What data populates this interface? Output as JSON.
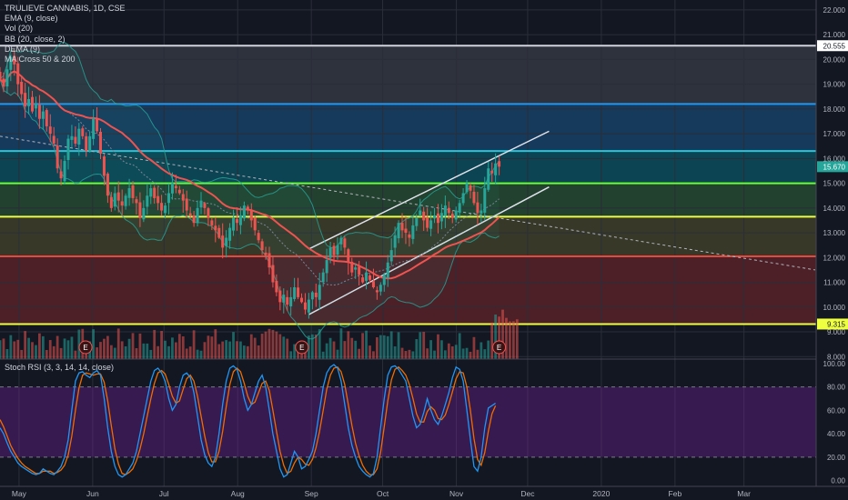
{
  "legend": {
    "title": "TRULIEVE CANNABIS, 1D, CSE",
    "indicators": [
      "EMA (9, close)",
      "Vol (20)",
      "BB (20, close, 2)",
      "DEMA (9)",
      "MA Cross 50 & 200"
    ],
    "rsi": "Stoch RSI (3, 3, 14, 14, close)"
  },
  "chart_data": {
    "type": "candlestick",
    "symbol": "TRULIEVE CANNABIS",
    "interval": "1D",
    "exchange": "CSE",
    "price_axis": {
      "range": [
        7.9,
        22.4
      ],
      "ticks": [
        "22.000",
        "21.000",
        "20.000",
        "19.000",
        "18.000",
        "17.000",
        "16.000",
        "15.000",
        "14.000",
        "13.000",
        "12.000",
        "11.000",
        "10.000",
        "9.000",
        "8.000"
      ]
    },
    "time_axis": [
      "May",
      "Jun",
      "Jul",
      "Aug",
      "Sep",
      "Oct",
      "Nov",
      "Dec",
      "2020",
      "Feb",
      "Mar"
    ],
    "price_labels": [
      {
        "value": "20.555",
        "color": "#ffffff",
        "text_color": "#131722"
      },
      {
        "value": "15.670",
        "color": "#26a69a",
        "text_color": "#ffffff"
      },
      {
        "value": "9.315",
        "color": "#eeff41",
        "text_color": "#131722"
      }
    ],
    "horizontal_levels": [
      {
        "price": 20.555,
        "color": "#d1d4dc"
      },
      {
        "price": 18.2,
        "color": "#2196f3"
      },
      {
        "price": 16.3,
        "color": "#26c6da"
      },
      {
        "price": 15.0,
        "color": "#66ff33"
      },
      {
        "price": 13.65,
        "color": "#eeff41"
      },
      {
        "price": 12.05,
        "color": "#f44336"
      },
      {
        "price": 9.315,
        "color": "#eeff41"
      }
    ],
    "zones": [
      {
        "from": 18.2,
        "to": 20.555,
        "color": "#787b86"
      },
      {
        "from": 16.3,
        "to": 18.2,
        "color": "#2196f3"
      },
      {
        "from": 15.0,
        "to": 16.3,
        "color": "#00bcd4"
      },
      {
        "from": 13.65,
        "to": 15.0,
        "color": "#4caf50"
      },
      {
        "from": 12.05,
        "to": 13.65,
        "color": "#9c8f3a"
      },
      {
        "from": 9.315,
        "to": 12.05,
        "color": "#e53935"
      }
    ],
    "closes": [
      19.2,
      18.9,
      19.6,
      20.1,
      19.8,
      19.0,
      18.6,
      18.1,
      18.4,
      17.9,
      18.2,
      17.6,
      17.9,
      17.3,
      17.0,
      16.6,
      15.6,
      15.2,
      15.9,
      16.8,
      16.9,
      16.6,
      17.2,
      16.9,
      16.3,
      16.9,
      17.6,
      17.1,
      16.2,
      15.3,
      14.5,
      14.0,
      14.6,
      14.3,
      14.1,
      14.5,
      14.8,
      14.4,
      14.2,
      13.6,
      14.0,
      14.5,
      14.8,
      14.4,
      14.2,
      13.9,
      14.1,
      14.6,
      15.0,
      14.8,
      14.6,
      14.3,
      13.9,
      13.7,
      13.4,
      14.0,
      14.3,
      14.0,
      13.6,
      13.3,
      13.1,
      12.8,
      12.4,
      12.8,
      13.2,
      13.6,
      13.4,
      13.7,
      14.1,
      13.9,
      13.5,
      13.1,
      12.7,
      12.3,
      12.1,
      11.6,
      11.0,
      10.6,
      10.2,
      10.5,
      10.1,
      10.4,
      10.8,
      10.4,
      10.2,
      9.9,
      10.3,
      10.6,
      10.4,
      10.9,
      11.4,
      11.9,
      12.4,
      12.1,
      12.5,
      12.8,
      12.4,
      11.8,
      11.4,
      11.6,
      11.3,
      11.0,
      11.4,
      11.1,
      10.8,
      10.6,
      10.9,
      11.3,
      11.8,
      12.3,
      12.9,
      13.4,
      13.1,
      13.0,
      12.8,
      13.3,
      13.6,
      13.9,
      13.5,
      13.2,
      13.5,
      13.7,
      13.4,
      13.8,
      14.1,
      13.8,
      13.6,
      13.9,
      14.2,
      14.6,
      15.0,
      14.7,
      14.2,
      13.8,
      13.9,
      14.8,
      15.6,
      15.4,
      15.8,
      15.67
    ],
    "dates": {
      "first": "2019-04-23",
      "last": "2019-11-19"
    },
    "series": [
      {
        "name": "MA Cross 50 & 200",
        "color": "#ef5350"
      },
      {
        "name": "BB (20, close, 2)",
        "color": "#26a69a"
      },
      {
        "name": "EMA (9, close)",
        "color": "#7c8596"
      }
    ],
    "volume_bars": 145,
    "earnings_markers": [
      "2019-05-29",
      "2019-08-28",
      "2019-11-19"
    ],
    "annotations": [
      {
        "type": "trend_line",
        "label": "upper channel",
        "points": [
          [
            "2019-08-31",
            12.35
          ],
          [
            "2019-12-10",
            17.1
          ]
        ]
      },
      {
        "type": "trend_line",
        "label": "lower channel",
        "points": [
          [
            "2019-08-31",
            9.7
          ],
          [
            "2019-12-10",
            14.85
          ]
        ]
      },
      {
        "type": "trend_line",
        "label": "dashed downtrend",
        "points": [
          [
            "2019-04-23",
            16.9
          ],
          [
            "2020-03-31",
            11.5
          ]
        ]
      }
    ],
    "stoch_rsi": {
      "name": "Stoch RSI (3, 3, 14, 14, close)",
      "range": [
        -5,
        103
      ],
      "ticks": [
        "100.00",
        "80.00",
        "60.00",
        "40.00",
        "20.00",
        "0.00"
      ],
      "band": [
        20,
        80
      ],
      "k_color": "#2196f3",
      "d_color": "#ef6c00",
      "k": [
        45,
        40,
        32,
        25,
        20,
        15,
        12,
        10,
        8,
        6,
        5,
        6,
        10,
        8,
        6,
        5,
        8,
        12,
        20,
        35,
        60,
        85,
        92,
        93,
        90,
        88,
        92,
        94,
        90,
        70,
        45,
        25,
        12,
        5,
        3,
        5,
        10,
        15,
        25,
        40,
        55,
        70,
        85,
        94,
        96,
        92,
        85,
        70,
        60,
        65,
        80,
        90,
        92,
        88,
        75,
        55,
        35,
        22,
        15,
        12,
        20,
        40,
        65,
        85,
        96,
        98,
        95,
        85,
        70,
        60,
        65,
        75,
        85,
        90,
        80,
        60,
        40,
        25,
        10,
        3,
        5,
        15,
        25,
        20,
        10,
        12,
        18,
        25,
        40,
        60,
        80,
        92,
        97,
        99,
        96,
        85,
        65,
        45,
        30,
        20,
        12,
        8,
        5,
        3,
        6,
        20,
        45,
        70,
        90,
        97,
        98,
        95,
        90,
        85,
        70,
        55,
        45,
        48,
        58,
        70,
        60,
        52,
        48,
        55,
        65,
        75,
        88,
        97,
        95,
        85,
        60,
        35,
        12,
        8,
        20,
        45,
        62,
        64,
        66
      ],
      "d": [
        52,
        46,
        38,
        30,
        24,
        19,
        15,
        12,
        10,
        8,
        6,
        6,
        8,
        8,
        8,
        6,
        7,
        9,
        13,
        22,
        38,
        60,
        79,
        90,
        92,
        91,
        90,
        91,
        91,
        84,
        68,
        47,
        27,
        14,
        6,
        5,
        7,
        10,
        17,
        27,
        40,
        55,
        70,
        83,
        92,
        94,
        91,
        82,
        72,
        66,
        68,
        78,
        87,
        90,
        85,
        72,
        55,
        38,
        24,
        16,
        16,
        25,
        42,
        63,
        82,
        93,
        96,
        93,
        83,
        72,
        65,
        67,
        75,
        83,
        85,
        77,
        60,
        42,
        25,
        13,
        6,
        8,
        15,
        20,
        18,
        14,
        13,
        18,
        28,
        42,
        60,
        78,
        90,
        96,
        97,
        93,
        82,
        65,
        47,
        32,
        21,
        13,
        8,
        5,
        5,
        10,
        24,
        46,
        68,
        86,
        95,
        97,
        94,
        90,
        82,
        70,
        57,
        50,
        50,
        59,
        63,
        60,
        53,
        52,
        56,
        65,
        76,
        87,
        93,
        92,
        80,
        60,
        36,
        18,
        13,
        24,
        42,
        57,
        64
      ]
    }
  }
}
